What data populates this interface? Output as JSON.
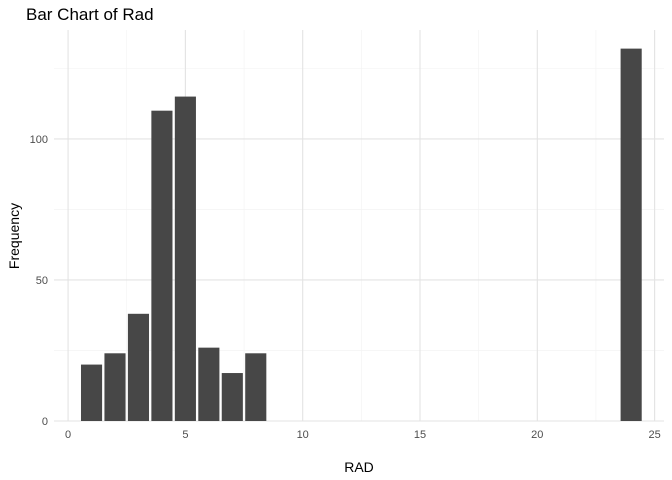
{
  "chart_data": {
    "type": "bar",
    "title": "Bar Chart of Rad",
    "xlabel": "RAD",
    "ylabel": "Frequency",
    "x": [
      1,
      2,
      3,
      4,
      5,
      6,
      7,
      8,
      24
    ],
    "values": [
      20,
      24,
      38,
      110,
      115,
      26,
      17,
      24,
      132
    ],
    "xlim": [
      -0.6,
      25.4
    ],
    "ylim": [
      0,
      138.6
    ],
    "x_ticks": [
      0,
      5,
      10,
      15,
      20,
      25
    ],
    "y_ticks": [
      0,
      50,
      100
    ],
    "bar_color": "#474747",
    "grid": true,
    "grid_major_color": "#e3e3e3",
    "grid_minor_color": "#f2f2f2",
    "theme": "minimal"
  }
}
